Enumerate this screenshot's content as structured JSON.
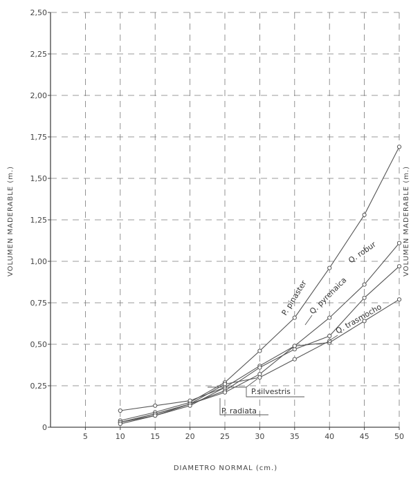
{
  "chart_data": {
    "type": "line",
    "xlabel": "DIAMETRO  NORMAL  (cm.)",
    "ylabel_left": "VOLUMEN  MADERABLE  (m.)",
    "ylabel_right": "VOLUMEN  MADERABLE  (m.)",
    "xlim": [
      0,
      50
    ],
    "ylim": [
      0,
      2.5
    ],
    "x_ticks": [
      5,
      10,
      15,
      20,
      25,
      30,
      35,
      40,
      45,
      50
    ],
    "x_tick_labels": [
      "5",
      "10",
      "15",
      "20",
      "25",
      "30",
      "35",
      "40",
      "45",
      "50"
    ],
    "y_ticks": [
      0,
      0.25,
      0.5,
      0.75,
      1.0,
      1.25,
      1.5,
      1.75,
      2.0,
      2.25,
      2.5
    ],
    "y_tick_labels": [
      "0",
      "0,25",
      "0,50",
      "0,75",
      "1,00",
      "1,25",
      "1,50",
      "1,75",
      "2,00",
      "2,25",
      "2,50"
    ],
    "grid": true,
    "series": [
      {
        "name": "P. pinaster",
        "x": [
          10,
          15,
          20,
          25,
          30,
          35,
          40,
          45,
          50
        ],
        "y": [
          0.04,
          0.09,
          0.15,
          0.27,
          0.46,
          0.66,
          0.96,
          1.28,
          1.69
        ]
      },
      {
        "name": "Q. pyrenaica",
        "x": [
          10,
          15,
          20,
          25,
          30,
          35,
          40,
          45,
          50
        ],
        "y": [
          0.1,
          0.13,
          0.16,
          0.24,
          0.37,
          0.49,
          0.66,
          0.86,
          1.11
        ]
      },
      {
        "name": "Q. robur",
        "x": [
          10,
          15,
          20,
          25,
          30,
          35,
          40,
          45,
          50
        ],
        "y": [
          0.03,
          0.08,
          0.14,
          0.22,
          0.36,
          0.47,
          0.55,
          0.78,
          0.97
        ]
      },
      {
        "name": "Q. trasmocho",
        "x": [
          10,
          15,
          20,
          25,
          30,
          35,
          40,
          45,
          50
        ],
        "y": [
          0.03,
          0.07,
          0.14,
          0.21,
          0.32,
          0.49,
          0.51,
          0.64,
          0.77
        ]
      },
      {
        "name": "P.silvestris",
        "x": [
          10,
          15,
          20,
          25,
          30,
          35,
          40
        ],
        "y": [
          0.03,
          0.08,
          0.14,
          0.26,
          0.3,
          0.41,
          0.52
        ]
      },
      {
        "name": "P. radiata",
        "x": [
          10,
          15,
          20,
          25
        ],
        "y": [
          0.02,
          0.07,
          0.13,
          0.24
        ]
      }
    ]
  }
}
